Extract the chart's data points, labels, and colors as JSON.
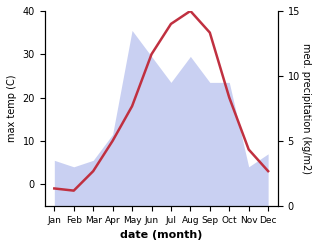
{
  "months": [
    "Jan",
    "Feb",
    "Mar",
    "Apr",
    "May",
    "Jun",
    "Jul",
    "Aug",
    "Sep",
    "Oct",
    "Nov",
    "Dec"
  ],
  "temperature": [
    -1,
    -1.5,
    3,
    10,
    18,
    30,
    37,
    40,
    35,
    20,
    8,
    3
  ],
  "precipitation": [
    3.5,
    3.0,
    3.5,
    5.5,
    13.5,
    11.5,
    9.5,
    11.5,
    9.5,
    9.5,
    3.0,
    4.0
  ],
  "temp_ylim": [
    -5,
    40
  ],
  "precip_ylim": [
    0,
    15
  ],
  "temp_color": "#c03040",
  "precip_color_fill": "#c0c8f0",
  "title": "",
  "xlabel": "date (month)",
  "ylabel_left": "max temp (C)",
  "ylabel_right": "med. precipitation (kg/m2)",
  "background_color": "#ffffff"
}
